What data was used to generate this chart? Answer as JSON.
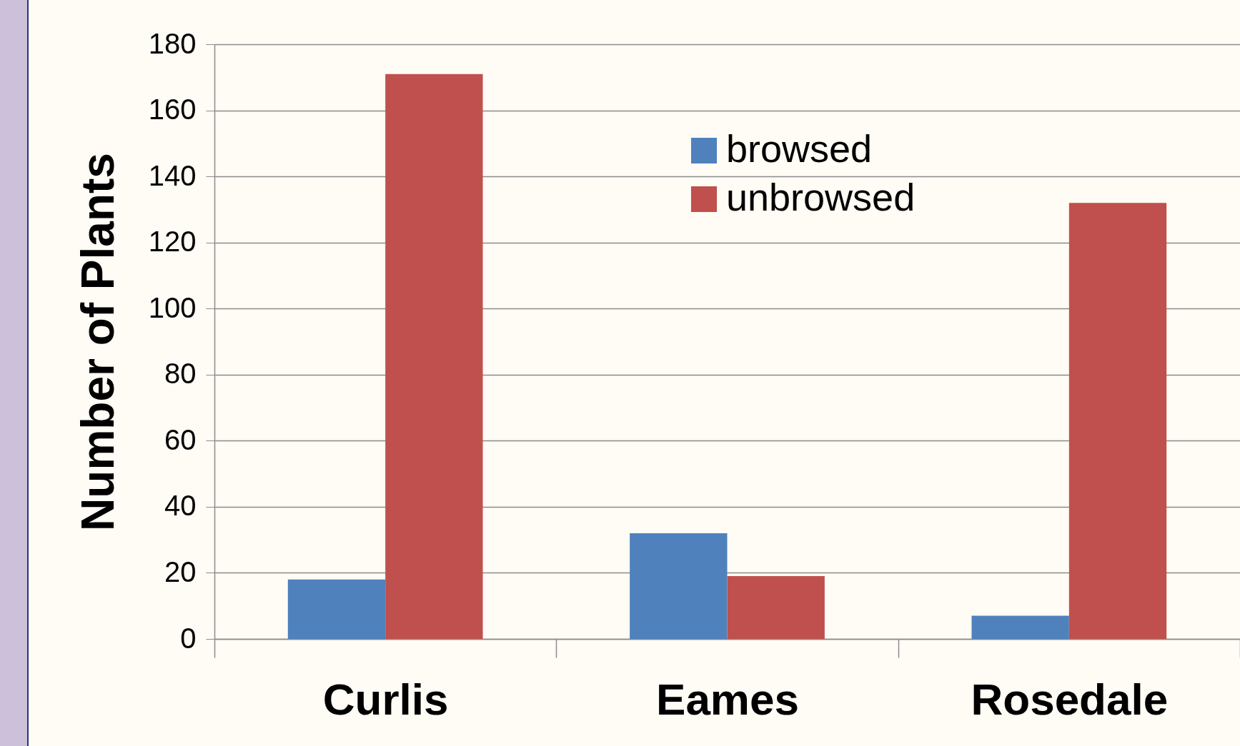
{
  "chart_data": {
    "type": "bar",
    "ylabel": "Number of Plants",
    "categories": [
      "Curlis",
      "Eames",
      "Rosedale"
    ],
    "series": [
      {
        "name": "browsed",
        "color": "#4f81bd",
        "values": [
          18,
          32,
          7
        ]
      },
      {
        "name": "unbrowsed",
        "color": "#c0504d",
        "values": [
          171,
          19,
          132
        ]
      }
    ],
    "ylim": [
      0,
      180
    ],
    "yticks": [
      0,
      20,
      40,
      60,
      80,
      100,
      120,
      140,
      160,
      180
    ],
    "grid": "y",
    "legend": "top"
  }
}
